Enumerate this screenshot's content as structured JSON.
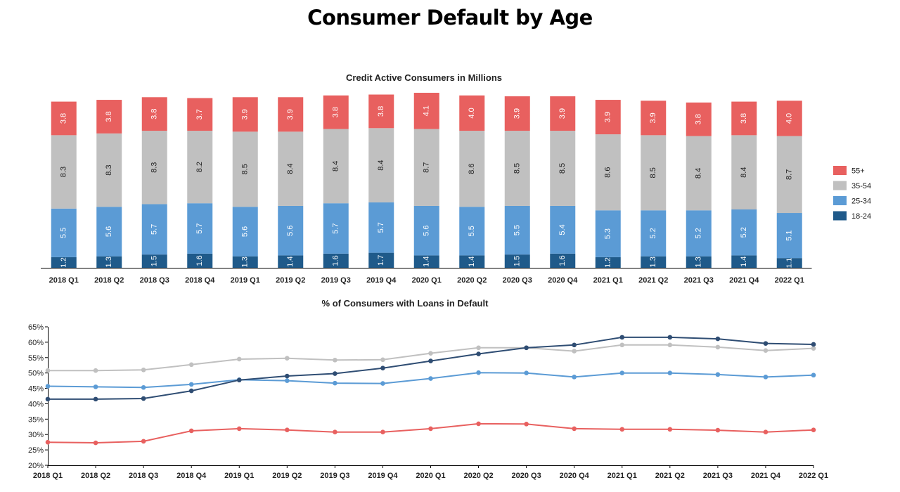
{
  "page_title": "Consumer Default by Age",
  "colors": {
    "55+": "#e8605f",
    "35-54": "#c0c0c0",
    "25-34": "#5b9bd5",
    "18-24": "#1f5a8a",
    "line_18_24": "#2f4d73"
  },
  "chart_data": [
    {
      "type": "bar",
      "stacked": true,
      "title": "Credit Active Consumers in Millions",
      "categories": [
        "2018 Q1",
        "2018 Q2",
        "2018 Q3",
        "2018 Q4",
        "2019 Q1",
        "2019 Q2",
        "2019 Q3",
        "2019 Q4",
        "2020 Q1",
        "2020 Q2",
        "2020 Q3",
        "2020 Q4",
        "2021 Q1",
        "2021 Q2",
        "2021 Q3",
        "2021 Q4",
        "2022 Q1"
      ],
      "series": [
        {
          "name": "18-24",
          "values": [
            1.2,
            1.3,
            1.5,
            1.6,
            1.3,
            1.4,
            1.6,
            1.7,
            1.4,
            1.4,
            1.5,
            1.6,
            1.2,
            1.3,
            1.3,
            1.4,
            1.1
          ]
        },
        {
          "name": "25-34",
          "values": [
            5.5,
            5.6,
            5.7,
            5.7,
            5.6,
            5.6,
            5.7,
            5.7,
            5.6,
            5.5,
            5.5,
            5.4,
            5.3,
            5.2,
            5.2,
            5.2,
            5.1
          ]
        },
        {
          "name": "35-54",
          "values": [
            8.3,
            8.3,
            8.3,
            8.2,
            8.5,
            8.4,
            8.4,
            8.4,
            8.7,
            8.6,
            8.5,
            8.5,
            8.6,
            8.5,
            8.4,
            8.4,
            8.7
          ]
        },
        {
          "name": "55+",
          "values": [
            3.8,
            3.8,
            3.8,
            3.7,
            3.9,
            3.9,
            3.8,
            3.8,
            4.1,
            4.0,
            3.9,
            3.9,
            3.9,
            3.9,
            3.8,
            3.8,
            4.0
          ]
        }
      ],
      "legend_position": "right",
      "legend": [
        "55+",
        "35-54",
        "25-34",
        "18-24"
      ]
    },
    {
      "type": "line",
      "title": "% of Consumers with Loans in Default",
      "categories": [
        "2018 Q1",
        "2018 Q2",
        "2018 Q3",
        "2018 Q4",
        "2019 Q1",
        "2019 Q2",
        "2019 Q3",
        "2019 Q4",
        "2020 Q1",
        "2020 Q2",
        "2020 Q3",
        "2020 Q4",
        "2021 Q1",
        "2021 Q2",
        "2021 Q3",
        "2021 Q4",
        "2022 Q1"
      ],
      "ylim": [
        20,
        65
      ],
      "yticks": [
        "20%",
        "25%",
        "30%",
        "35%",
        "40%",
        "45%",
        "50%",
        "55%",
        "60%",
        "65%"
      ],
      "series": [
        {
          "name": "35-54",
          "values": [
            50.8,
            50.8,
            51.0,
            52.7,
            54.5,
            54.8,
            54.2,
            54.3,
            56.4,
            58.2,
            58.2,
            57.1,
            59.1,
            59.1,
            58.4,
            57.3,
            58.0
          ]
        },
        {
          "name": "25-34",
          "values": [
            45.7,
            45.5,
            45.3,
            46.3,
            47.8,
            47.5,
            46.7,
            46.6,
            48.2,
            50.1,
            50.0,
            48.7,
            50.0,
            50.0,
            49.5,
            48.7,
            49.3
          ]
        },
        {
          "name": "18-24",
          "values": [
            41.5,
            41.5,
            41.7,
            44.2,
            47.7,
            49.0,
            49.8,
            51.6,
            53.9,
            56.2,
            58.2,
            59.1,
            61.6,
            61.6,
            61.1,
            59.6,
            59.3
          ]
        },
        {
          "name": "55+",
          "values": [
            27.5,
            27.3,
            27.8,
            31.2,
            31.9,
            31.5,
            30.8,
            30.8,
            31.9,
            33.5,
            33.4,
            31.9,
            31.7,
            31.7,
            31.4,
            30.8,
            31.5
          ]
        }
      ]
    }
  ]
}
